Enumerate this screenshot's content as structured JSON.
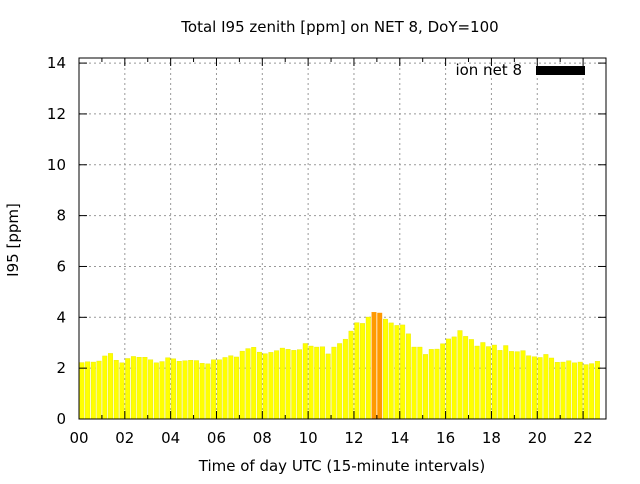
{
  "chart_data": {
    "type": "bar",
    "title": "Total I95 zenith [ppm] on NET 8, DoY=100",
    "xlabel": "Time of day UTC (15-minute intervals)",
    "ylabel": "I95 [ppm]",
    "xlim": [
      0,
      23
    ],
    "ylim": [
      0,
      14.2
    ],
    "x_ticks": [
      "00",
      "02",
      "04",
      "06",
      "08",
      "10",
      "12",
      "14",
      "16",
      "18",
      "20",
      "22"
    ],
    "y_ticks": [
      "0",
      "2",
      "4",
      "6",
      "8",
      "10",
      "12",
      "14"
    ],
    "grid": true,
    "legend": {
      "placement": "top-right",
      "entries": [
        {
          "label": "ion net 8",
          "color": "#000000"
        }
      ]
    },
    "bar_width_hours": 0.25,
    "x_start_hour": 0,
    "values": [
      2.22,
      2.25,
      2.24,
      2.28,
      2.48,
      2.58,
      2.31,
      2.21,
      2.38,
      2.46,
      2.43,
      2.43,
      2.33,
      2.21,
      2.26,
      2.41,
      2.37,
      2.27,
      2.29,
      2.31,
      2.3,
      2.19,
      2.17,
      2.33,
      2.33,
      2.42,
      2.49,
      2.44,
      2.67,
      2.77,
      2.82,
      2.63,
      2.57,
      2.62,
      2.69,
      2.79,
      2.74,
      2.7,
      2.73,
      2.97,
      2.87,
      2.83,
      2.84,
      2.56,
      2.83,
      2.97,
      3.14,
      3.46,
      3.79,
      3.76,
      4.01,
      4.2,
      4.17,
      3.93,
      3.78,
      3.68,
      3.7,
      3.35,
      2.83,
      2.83,
      2.54,
      2.74,
      2.75,
      2.96,
      3.15,
      3.23,
      3.48,
      3.25,
      3.13,
      2.87,
      3.01,
      2.85,
      2.91,
      2.7,
      2.89,
      2.66,
      2.65,
      2.69,
      2.49,
      2.45,
      2.42,
      2.54,
      2.4,
      2.23,
      2.24,
      2.29,
      2.21,
      2.24,
      2.14,
      2.18,
      2.27
    ],
    "highlight_indices": [
      51,
      52
    ],
    "colors": {
      "bar": "#ffff00",
      "bar_edge": "#e6e600",
      "highlight": "#ff9900",
      "legend_swatch": "#000000",
      "grid": "#999999"
    }
  }
}
